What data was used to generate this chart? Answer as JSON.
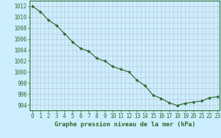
{
  "hours": [
    0,
    1,
    2,
    3,
    4,
    5,
    6,
    7,
    8,
    9,
    10,
    11,
    12,
    13,
    14,
    15,
    16,
    17,
    18,
    19,
    20,
    21,
    22,
    23
  ],
  "pressure": [
    1012,
    1011.0,
    1009.5,
    1008.5,
    1007.0,
    1005.5,
    1004.3,
    1003.8,
    1002.5,
    1002.0,
    1001.0,
    1000.5,
    1000.0,
    998.5,
    997.5,
    995.8,
    995.2,
    994.4,
    993.9,
    994.3,
    994.5,
    994.7,
    995.3,
    995.5
  ],
  "line_color": "#2d6a2d",
  "marker_color": "#2d6a2d",
  "bg_color": "#cceeff",
  "grid_color": "#bbbbcc",
  "axis_color": "#2d6a2d",
  "border_color": "#2d6a2d",
  "xlabel_text": "Graphe pression niveau de la mer (hPa)",
  "ylim_min": 993.0,
  "ylim_max": 1013.0,
  "yticks": [
    994,
    996,
    998,
    1000,
    1002,
    1004,
    1006,
    1008,
    1010,
    1012
  ],
  "tick_fontsize": 5.5,
  "label_fontsize": 6.5,
  "linewidth": 0.9,
  "markersize": 2.2
}
